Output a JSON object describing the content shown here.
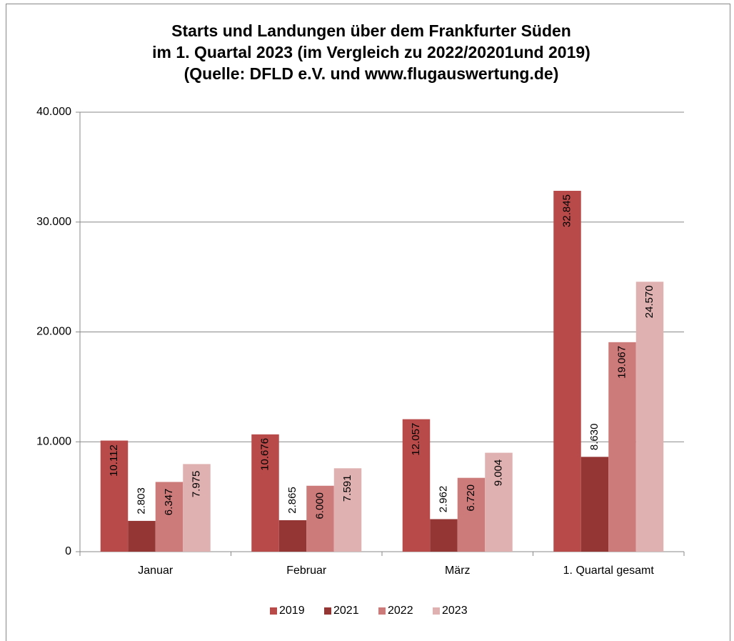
{
  "chart_data": {
    "type": "bar",
    "title": [
      "Starts und Landungen über dem Frankfurter Süden",
      "im 1. Quartal 2023 (im Vergleich zu 2022/20201und 2019)",
      "(Quelle: DFLD e.V. und www.flugauswertung.de)"
    ],
    "categories": [
      "Januar",
      "Februar",
      "März",
      "1. Quartal gesamt"
    ],
    "series": [
      {
        "name": "2019",
        "color": "#b84a4a",
        "label_color": "#ffffff",
        "values": [
          10112,
          10676,
          12057,
          32845
        ],
        "value_labels": [
          "10.112",
          "10.676",
          "12.057",
          "32.845"
        ]
      },
      {
        "name": "2021",
        "color": "#943634",
        "label_color": "#000000",
        "values": [
          2803,
          2865,
          2962,
          8630
        ],
        "value_labels": [
          "2.803",
          "2.865",
          "2.962",
          "8.630"
        ]
      },
      {
        "name": "2022",
        "color": "#cd7a7a",
        "label_color": "#000000",
        "values": [
          6347,
          6000,
          6720,
          19067
        ],
        "value_labels": [
          "6.347",
          "6.000",
          "6.720",
          "19.067"
        ]
      },
      {
        "name": "2023",
        "color": "#e0b1b1",
        "label_color": "#ffffff",
        "values": [
          7975,
          7591,
          9004,
          24570
        ],
        "value_labels": [
          "7.975",
          "7.591",
          "9.004",
          "24.570"
        ]
      }
    ],
    "ylim": [
      0,
      40000
    ],
    "yticks": [
      0,
      {
        "value": 10000,
        "label": "10.000"
      },
      {
        "value": 20000,
        "label": "20.000"
      },
      {
        "value": 30000,
        "label": "30.000"
      },
      {
        "value": 40000,
        "label": "40.000"
      }
    ],
    "grid": true,
    "legend": "bottom"
  }
}
